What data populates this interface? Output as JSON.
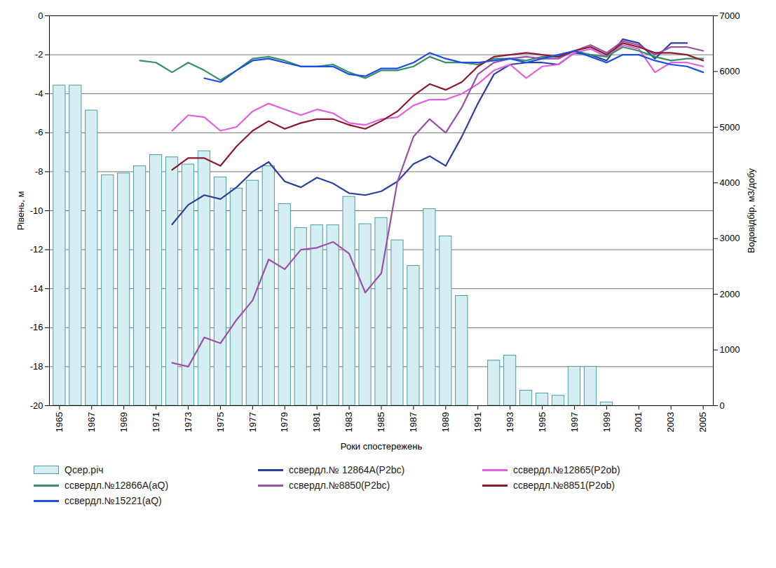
{
  "chart_data": {
    "type": "line",
    "x_label": "Роки спостережень",
    "y_label": "Рівень, м",
    "y2_label": "Водовідбір, м3/добу",
    "x": [
      1965,
      1966,
      1967,
      1968,
      1969,
      1970,
      1971,
      1972,
      1973,
      1974,
      1975,
      1976,
      1977,
      1978,
      1979,
      1980,
      1981,
      1982,
      1983,
      1984,
      1985,
      1986,
      1987,
      1988,
      1989,
      1990,
      1991,
      1992,
      1993,
      1994,
      1995,
      1996,
      1997,
      1998,
      1999,
      2000,
      2001,
      2002,
      2003,
      2004,
      2005
    ],
    "xticks": [
      1965,
      1967,
      1969,
      1971,
      1973,
      1975,
      1977,
      1979,
      1981,
      1983,
      1985,
      1987,
      1989,
      1991,
      1993,
      1995,
      1997,
      1999,
      2001,
      2003,
      2005
    ],
    "ylim": [
      -20,
      0
    ],
    "yticks": [
      -20,
      -18,
      -16,
      -14,
      -12,
      -10,
      -8,
      -6,
      -4,
      -2,
      0
    ],
    "y2lim": [
      0,
      7000
    ],
    "y2ticks": [
      0,
      1000,
      2000,
      3000,
      4000,
      5000,
      6000,
      7000
    ],
    "grid": true,
    "legend": "bottom",
    "series": [
      {
        "name": "Qсер.річ",
        "type": "bar",
        "axis": "y2",
        "color": "#d4eef1",
        "values": [
          5750,
          5750,
          5300,
          4140,
          4170,
          4300,
          4500,
          4460,
          4330,
          4570,
          4100,
          3900,
          4040,
          4300,
          3620,
          3190,
          3240,
          3240,
          3750,
          3260,
          3370,
          2970,
          2510,
          3530,
          3040,
          1970,
          null,
          810,
          900,
          270,
          220,
          180,
          700,
          700,
          60,
          null,
          null,
          null,
          null,
          null,
          null
        ]
      },
      {
        "name": "ссвердл.№ 12864А(P2bc)",
        "type": "line",
        "color": "#2f3f9f",
        "values": [
          null,
          null,
          null,
          null,
          null,
          null,
          null,
          -10.7,
          -9.7,
          -9.2,
          -9.4,
          -8.8,
          -8.0,
          -7.5,
          -8.5,
          -8.8,
          -8.3,
          -8.6,
          -9.1,
          -9.2,
          -9.0,
          -8.5,
          -7.6,
          -7.2,
          -7.7,
          -6.2,
          -4.5,
          -3.0,
          -2.5,
          -2.4,
          -2.4,
          -2.5,
          -1.9,
          -2.0,
          -2.3,
          -1.2,
          -1.4,
          -2.2,
          -1.4,
          -1.4,
          null
        ]
      },
      {
        "name": "ссвердл.№12865(P2ob)",
        "type": "line",
        "color": "#e060e0",
        "values": [
          null,
          null,
          null,
          null,
          null,
          null,
          null,
          -5.9,
          -5.1,
          -5.2,
          -5.9,
          -5.7,
          -4.9,
          -4.5,
          -4.8,
          -5.1,
          -4.8,
          -5.0,
          -5.5,
          -5.6,
          -5.3,
          -5.2,
          -4.6,
          -4.3,
          -4.3,
          -4.0,
          -3.5,
          -2.8,
          -2.5,
          -3.2,
          -2.6,
          -2.5,
          -1.9,
          -1.7,
          -2.1,
          -1.5,
          -1.7,
          -2.9,
          -2.4,
          -2.4,
          -2.6
        ]
      },
      {
        "name": "ссвердл.№12866А(aQ)",
        "type": "line",
        "color": "#3a8f6a",
        "values": [
          null,
          null,
          null,
          null,
          null,
          -2.3,
          -2.4,
          -2.9,
          -2.4,
          -2.8,
          -3.3,
          -2.8,
          -2.2,
          -2.1,
          -2.3,
          -2.6,
          -2.6,
          -2.5,
          -2.9,
          -3.2,
          -2.8,
          -2.8,
          -2.6,
          -2.1,
          -2.4,
          -2.4,
          -2.5,
          -2.2,
          -2.2,
          -2.3,
          -2.1,
          -2.1,
          -1.8,
          -2.0,
          -2.1,
          -1.6,
          -1.8,
          -2.1,
          -2.3,
          -2.2,
          -2.2
        ]
      },
      {
        "name": "ссвердл.№8850(P2bc)",
        "type": "line",
        "color": "#9a4fa8",
        "values": [
          null,
          null,
          null,
          null,
          null,
          null,
          null,
          -17.8,
          -18.0,
          -16.5,
          -16.8,
          -15.6,
          -14.6,
          -12.5,
          -13.0,
          -12.0,
          -11.9,
          -11.6,
          -12.2,
          -14.2,
          -13.2,
          -8.5,
          -6.2,
          -5.3,
          -6.0,
          -4.7,
          -3.0,
          -2.4,
          -2.2,
          -2.1,
          -2.2,
          -2.2,
          -1.8,
          -1.5,
          -1.9,
          -1.3,
          -1.5,
          -2.0,
          -1.6,
          -1.6,
          -1.8
        ]
      },
      {
        "name": "ссвердл.№8851(P2ob)",
        "type": "line",
        "color": "#8b1a2a",
        "values": [
          null,
          null,
          null,
          null,
          null,
          null,
          null,
          -7.9,
          -7.3,
          -7.3,
          -7.7,
          -6.7,
          -5.9,
          -5.4,
          -5.8,
          -5.5,
          -5.3,
          -5.3,
          -5.6,
          -5.8,
          -5.4,
          -4.9,
          -4.1,
          -3.5,
          -3.8,
          -3.4,
          -2.6,
          -2.1,
          -2.0,
          -1.9,
          -2.0,
          -2.1,
          -1.8,
          -1.6,
          -2.0,
          -1.4,
          -1.6,
          -1.9,
          -1.9,
          -2.0,
          -2.3
        ]
      },
      {
        "name": "ссвердл.№15221(aQ)",
        "type": "line",
        "color": "#1a4fe0",
        "values": [
          null,
          null,
          null,
          null,
          null,
          null,
          null,
          null,
          null,
          -3.2,
          -3.4,
          -2.8,
          -2.3,
          -2.2,
          -2.4,
          -2.6,
          -2.6,
          -2.6,
          -3.0,
          -3.1,
          -2.7,
          -2.7,
          -2.4,
          -1.9,
          -2.2,
          -2.4,
          -2.4,
          -2.3,
          -2.2,
          -2.4,
          -2.2,
          -2.0,
          -1.8,
          -2.1,
          -2.4,
          -2.0,
          -2.0,
          -2.3,
          -2.5,
          -2.6,
          -2.9
        ]
      }
    ]
  }
}
